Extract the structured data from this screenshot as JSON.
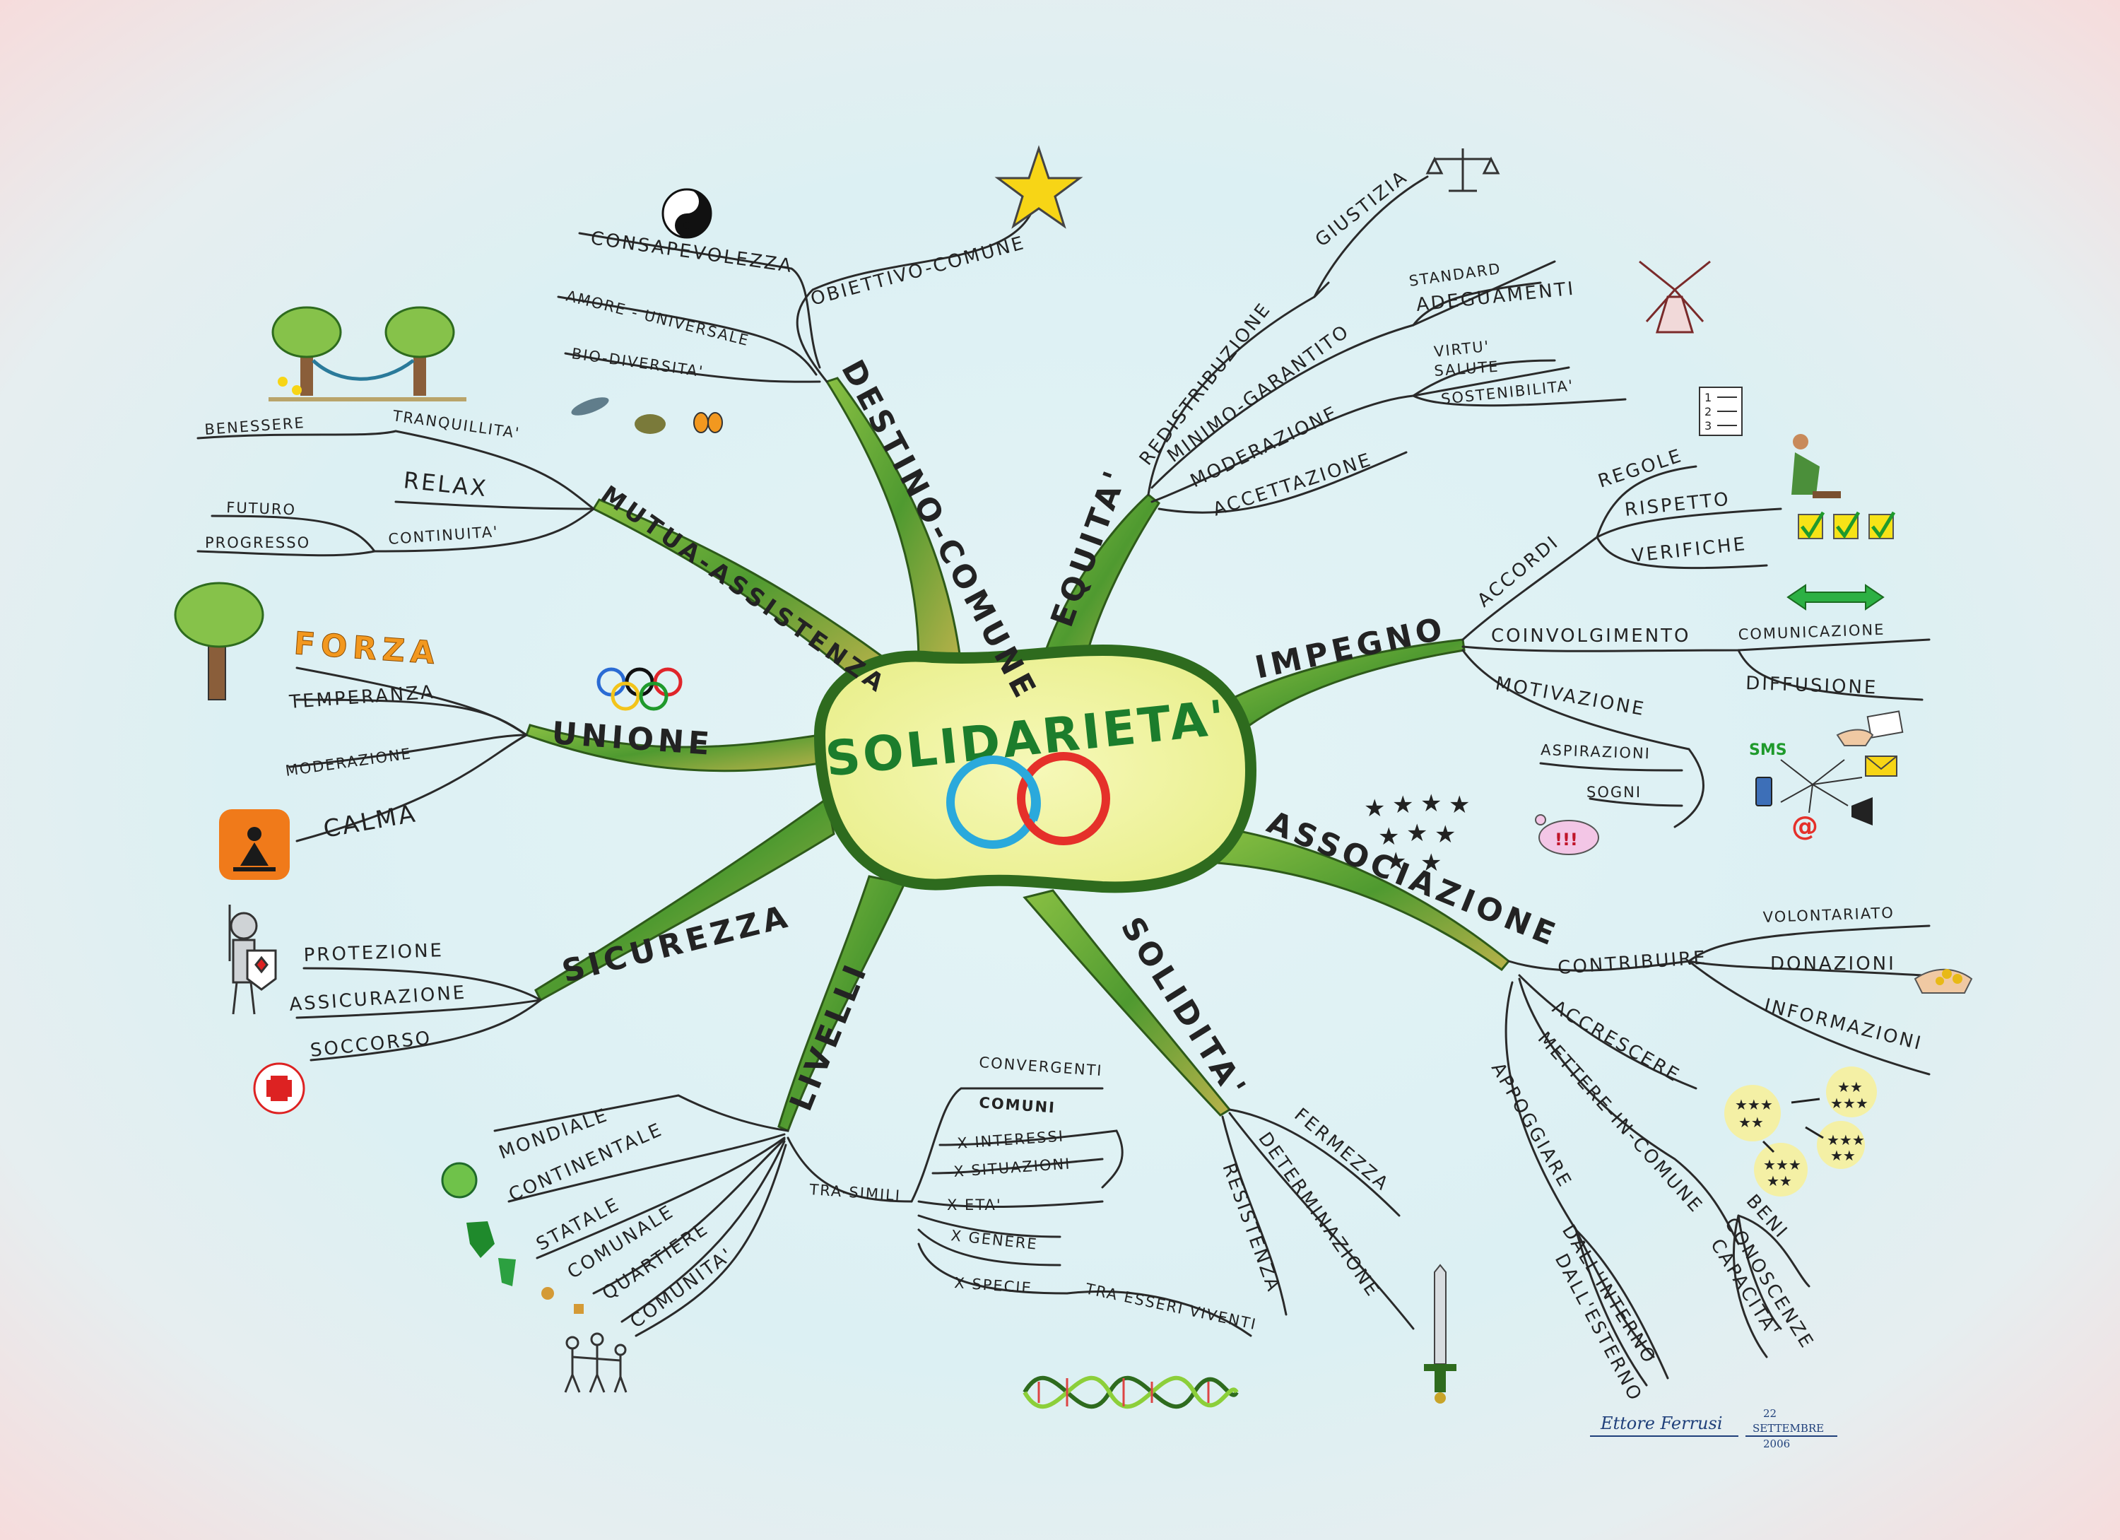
{
  "center": {
    "title": "SOLIDARIETA'"
  },
  "branches": {
    "destino_comune": {
      "label": "DESTINO-COMUNE",
      "children": [
        "OBIETTIVO-COMUNE",
        "CONSAPEVOLEZZA",
        "AMORE - UNIVERSALE",
        "BIO-DIVERSITA'"
      ]
    },
    "equita": {
      "label": "EQUITA'",
      "children": [
        "REDISTRIBUZIONE",
        "GIUSTIZIA",
        "MINIMO-GARANTITO",
        "STANDARD",
        "ADEGUAMENTI",
        "MODERAZIONE",
        "VIRTU'",
        "SALUTE",
        "SOSTENIBILITA'",
        "ACCETTAZIONE"
      ]
    },
    "impegno": {
      "label": "IMPEGNO",
      "children": [
        "ACCORDI",
        "REGOLE",
        "RISPETTO",
        "VERIFICHE",
        "COINVOLGIMENTO",
        "COMUNICAZIONE",
        "DIFFUSIONE",
        "MOTIVAZIONE",
        "ASPIRAZIONI",
        "SOGNI"
      ]
    },
    "associazione": {
      "label": "ASSOCIAZIONE",
      "children": [
        "CONTRIBUIRE",
        "VOLONTARIATO",
        "DONAZIONI",
        "INFORMAZIONI",
        "ACCRESCERE",
        "METTERE-IN-COMUNE",
        "BENI",
        "CONOSCENZE",
        "CAPACITA'",
        "APPOGGIARE",
        "DALL'INTERNO",
        "DALL'ESTERNO"
      ]
    },
    "solidita": {
      "label": "SOLIDITA'",
      "children": [
        "FERMEZZA",
        "DETERMINAZIONE",
        "RESISTENZA"
      ]
    },
    "livelli": {
      "label": "LIVELLI",
      "children": [
        "MONDIALE",
        "CONTINENTALE",
        "STATALE",
        "COMUNALE",
        "QUARTIERE",
        "COMUNITA'",
        "TRA-SIMILI",
        "CONVERGENTI",
        "COMUNI",
        "X INTERESSI",
        "X SITUAZIONI",
        "X ETA'",
        "X GENERE",
        "X SPECIE",
        "TRA ESSERI VIVENTI"
      ]
    },
    "sicurezza": {
      "label": "SICUREZZA",
      "children": [
        "PROTEZIONE",
        "ASSICURAZIONE",
        "SOCCORSO"
      ]
    },
    "unione": {
      "label": "UNIONE",
      "children": [
        "FORZA",
        "TEMPERANZA",
        "MODERAZIONE",
        "CALMA"
      ]
    },
    "mutua_assistenza": {
      "label": "MUTUA-ASSISTENZA",
      "children": [
        "TRANQUILLITA'",
        "BENESSERE",
        "RELAX",
        "CONTINUITA'",
        "FUTURO",
        "PROGRESSO"
      ]
    }
  },
  "icons": {
    "sms_label": "SMS",
    "exclaim_label": "!!!",
    "at_label": "@",
    "checklist_numbers": [
      "1",
      "2",
      "3"
    ]
  },
  "signature": {
    "name": "Ettore Ferrusi",
    "day": "22",
    "month": "SETTEMBRE",
    "year": "2006"
  },
  "colors": {
    "branch_green": "#6fb33a",
    "branch_dark": "#2e6b1e",
    "center_fill": "#f1f5a6",
    "ring_blue": "#2aa9dc",
    "ring_red": "#e5302a"
  }
}
